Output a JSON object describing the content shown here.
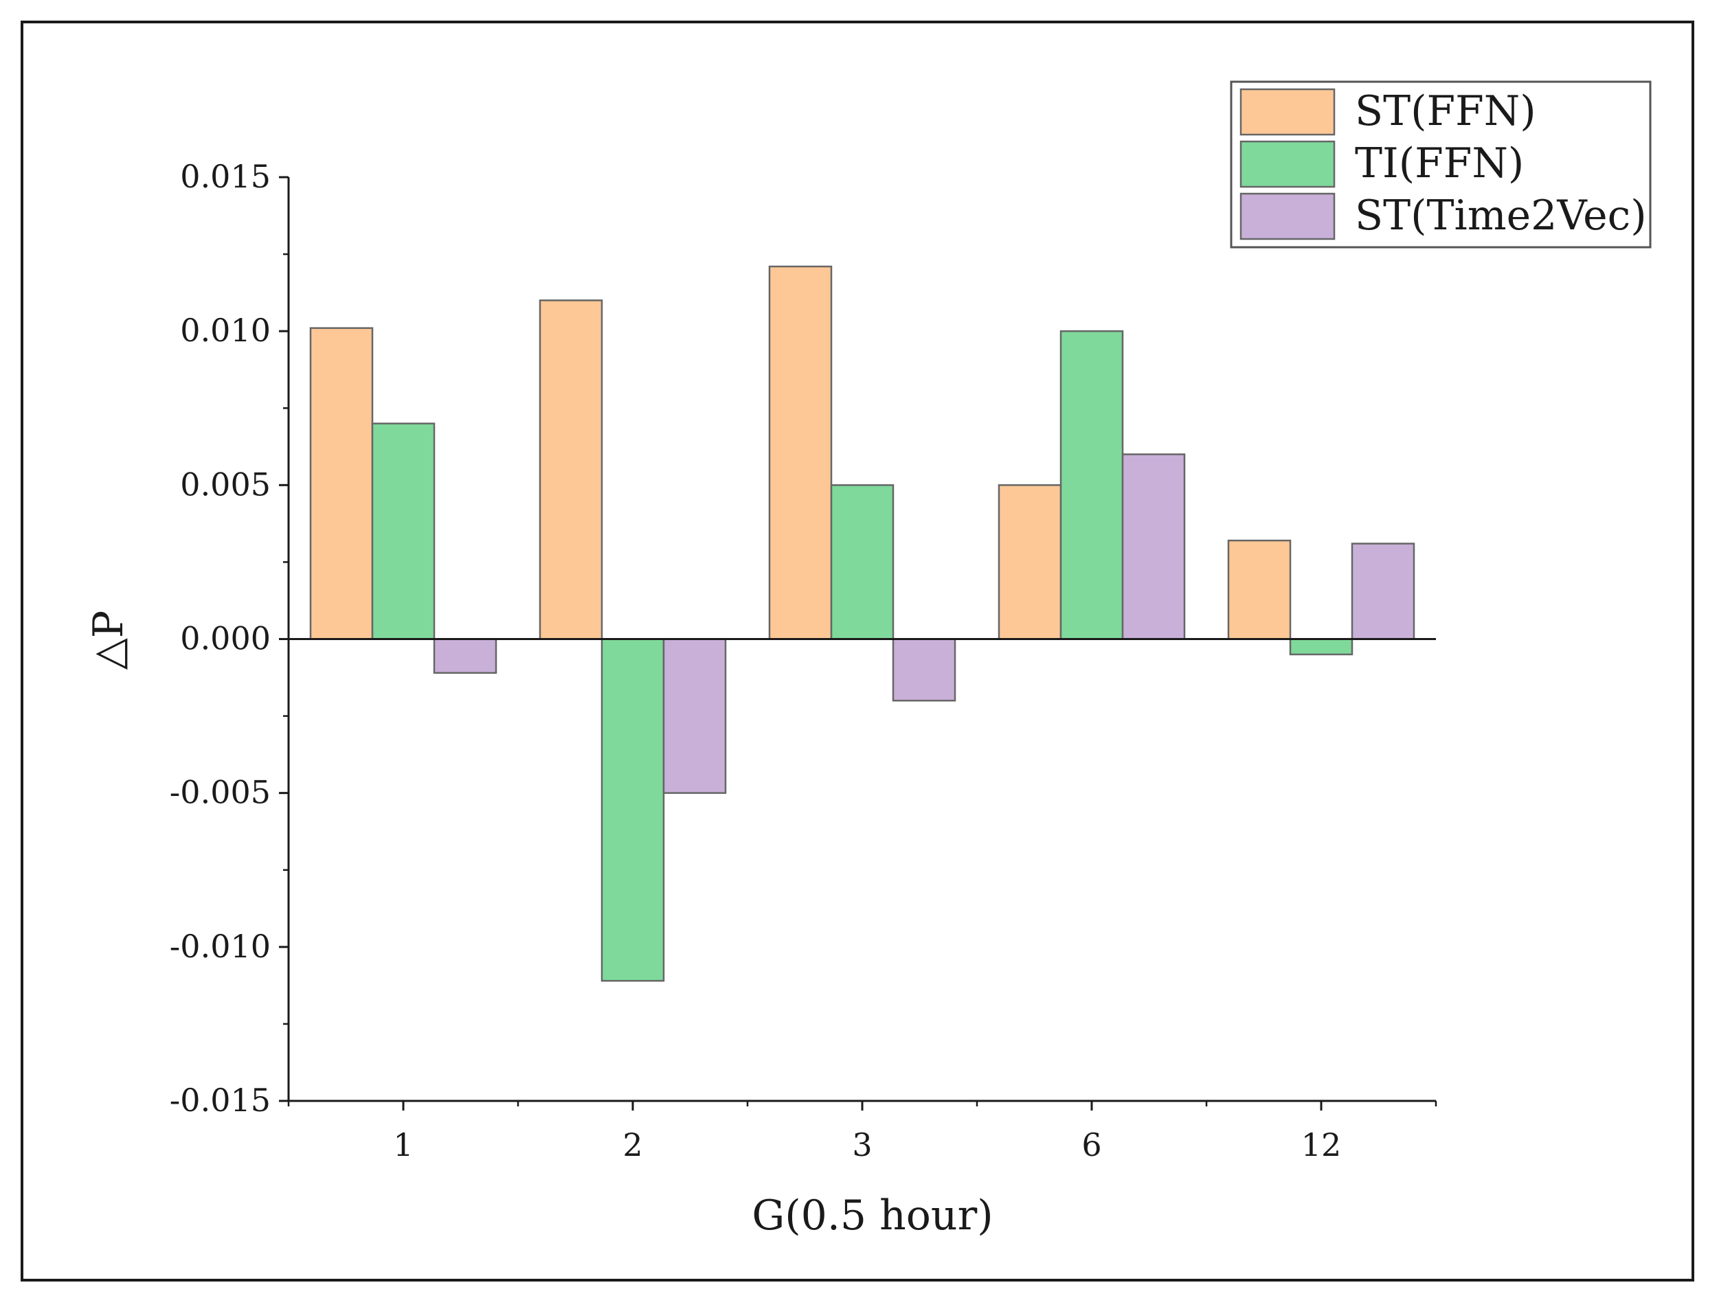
{
  "chart_data": {
    "type": "bar",
    "title": "",
    "xlabel": "G(0.5 hour)",
    "ylabel": "△P",
    "categories": [
      "1",
      "2",
      "3",
      "6",
      "12"
    ],
    "series": [
      {
        "name": "ST(FFN)",
        "color": "#fdc896",
        "values": [
          0.0101,
          0.011,
          0.0121,
          0.005,
          0.0032
        ]
      },
      {
        "name": "TI(FFN)",
        "color": "#7fd99b",
        "values": [
          0.007,
          -0.0111,
          0.005,
          0.01,
          -0.0005
        ]
      },
      {
        "name": "ST(Time2Vec)",
        "color": "#c8b0d8",
        "values": [
          -0.0011,
          -0.005,
          -0.002,
          0.006,
          0.0031
        ]
      }
    ],
    "ylim": [
      -0.015,
      0.015
    ],
    "yticks": [
      -0.015,
      -0.01,
      -0.005,
      0.0,
      0.005,
      0.01,
      0.015
    ],
    "ytick_labels": [
      "-0.015",
      "-0.010",
      "-0.005",
      "0.000",
      "0.005",
      "0.010",
      "0.015"
    ],
    "grid": false,
    "legend_position": "top-right"
  }
}
